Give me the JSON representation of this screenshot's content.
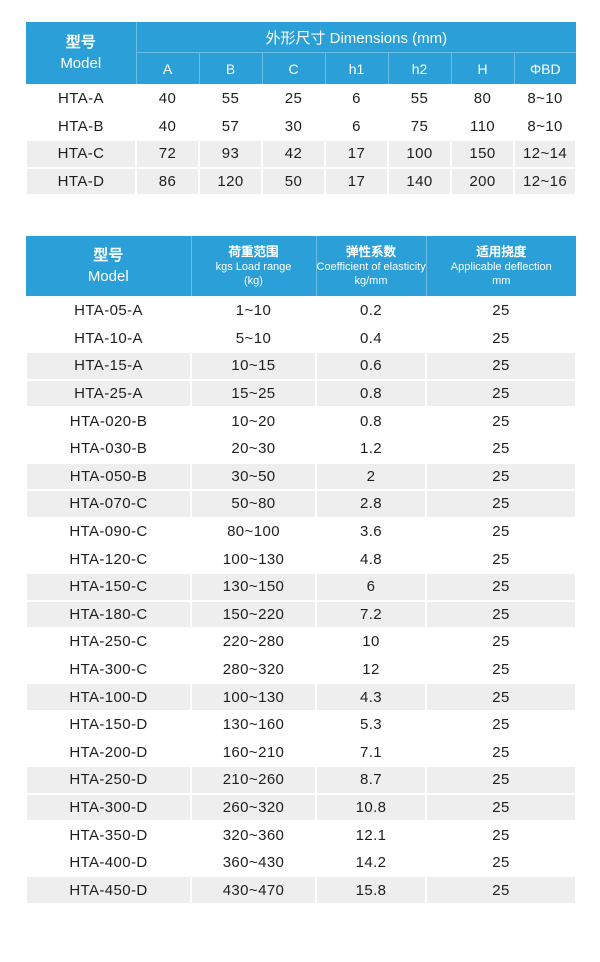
{
  "colors": {
    "header_blue": "#2b9fd7",
    "header_divider": "#6cbde4",
    "row_shade": "#eeeeee",
    "text": "#1f1f1f",
    "header_text": "#ffffff"
  },
  "table1": {
    "model_header": {
      "zh": "型号",
      "en": "Model"
    },
    "dimensions_header": "外形尺寸 Dimensions (mm)",
    "columns": [
      "A",
      "B",
      "C",
      "h1",
      "h2",
      "H",
      "ΦBD"
    ],
    "rows": [
      {
        "model": "HTA-A",
        "values": [
          "40",
          "55",
          "25",
          "6",
          "55",
          "80",
          "8~10"
        ],
        "shaded": false
      },
      {
        "model": "HTA-B",
        "values": [
          "40",
          "57",
          "30",
          "6",
          "75",
          "110",
          "8~10"
        ],
        "shaded": false
      },
      {
        "model": "HTA-C",
        "values": [
          "72",
          "93",
          "42",
          "17",
          "100",
          "150",
          "12~14"
        ],
        "shaded": true
      },
      {
        "model": "HTA-D",
        "values": [
          "86",
          "120",
          "50",
          "17",
          "140",
          "200",
          "12~16"
        ],
        "shaded": true
      }
    ]
  },
  "table2": {
    "headers": {
      "model": {
        "zh": "型号",
        "en": "Model"
      },
      "load": {
        "zh": "荷重范围",
        "en": "kgs Load range",
        "unit": "(kg)"
      },
      "coefficient": {
        "zh": "弹性系数",
        "en": "Coefficient of elasticity",
        "unit": "kg/mm"
      },
      "deflection": {
        "zh": "适用挠度",
        "en": "Applicable deflection",
        "unit": "mm"
      }
    },
    "rows": [
      {
        "model": "HTA-05-A",
        "load_range": "1~10",
        "coefficient": "0.2",
        "deflection": "25",
        "shaded": false
      },
      {
        "model": "HTA-10-A",
        "load_range": "5~10",
        "coefficient": "0.4",
        "deflection": "25",
        "shaded": false
      },
      {
        "model": "HTA-15-A",
        "load_range": "10~15",
        "coefficient": "0.6",
        "deflection": "25",
        "shaded": true
      },
      {
        "model": "HTA-25-A",
        "load_range": "15~25",
        "coefficient": "0.8",
        "deflection": "25",
        "shaded": true
      },
      {
        "model": "HTA-020-B",
        "load_range": "10~20",
        "coefficient": "0.8",
        "deflection": "25",
        "shaded": false
      },
      {
        "model": "HTA-030-B",
        "load_range": "20~30",
        "coefficient": "1.2",
        "deflection": "25",
        "shaded": false
      },
      {
        "model": "HTA-050-B",
        "load_range": "30~50",
        "coefficient": "2",
        "deflection": "25",
        "shaded": true
      },
      {
        "model": "HTA-070-C",
        "load_range": "50~80",
        "coefficient": "2.8",
        "deflection": "25",
        "shaded": true
      },
      {
        "model": "HTA-090-C",
        "load_range": "80~100",
        "coefficient": "3.6",
        "deflection": "25",
        "shaded": false
      },
      {
        "model": "HTA-120-C",
        "load_range": "100~130",
        "coefficient": "4.8",
        "deflection": "25",
        "shaded": false
      },
      {
        "model": "HTA-150-C",
        "load_range": "130~150",
        "coefficient": "6",
        "deflection": "25",
        "shaded": true
      },
      {
        "model": "HTA-180-C",
        "load_range": "150~220",
        "coefficient": "7.2",
        "deflection": "25",
        "shaded": true
      },
      {
        "model": "HTA-250-C",
        "load_range": "220~280",
        "coefficient": "10",
        "deflection": "25",
        "shaded": false
      },
      {
        "model": "HTA-300-C",
        "load_range": "280~320",
        "coefficient": "12",
        "deflection": "25",
        "shaded": false
      },
      {
        "model": "HTA-100-D",
        "load_range": "100~130",
        "coefficient": "4.3",
        "deflection": "25",
        "shaded": true
      },
      {
        "model": "HTA-150-D",
        "load_range": "130~160",
        "coefficient": "5.3",
        "deflection": "25",
        "shaded": false
      },
      {
        "model": "HTA-200-D",
        "load_range": "160~210",
        "coefficient": "7.1",
        "deflection": "25",
        "shaded": false
      },
      {
        "model": "HTA-250-D",
        "load_range": "210~260",
        "coefficient": "8.7",
        "deflection": "25",
        "shaded": true
      },
      {
        "model": "HTA-300-D",
        "load_range": "260~320",
        "coefficient": "10.8",
        "deflection": "25",
        "shaded": true
      },
      {
        "model": "HTA-350-D",
        "load_range": "320~360",
        "coefficient": "12.1",
        "deflection": "25",
        "shaded": false
      },
      {
        "model": "HTA-400-D",
        "load_range": "360~430",
        "coefficient": "14.2",
        "deflection": "25",
        "shaded": false
      },
      {
        "model": "HTA-450-D",
        "load_range": "430~470",
        "coefficient": "15.8",
        "deflection": "25",
        "shaded": true
      }
    ]
  }
}
